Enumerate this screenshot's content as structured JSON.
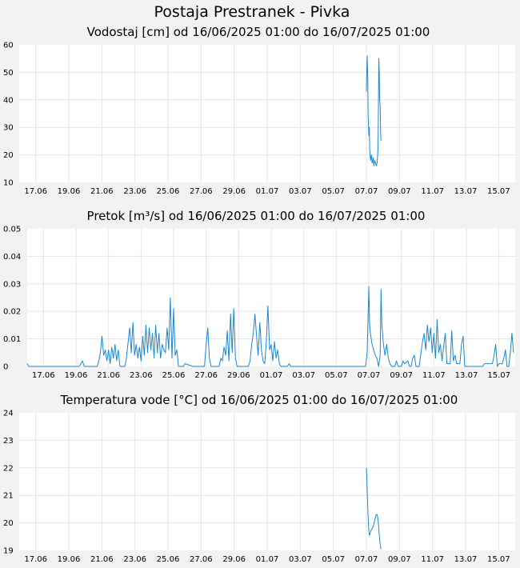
{
  "page": {
    "title": "Postaja Prestranek - Pivka"
  },
  "x_tick_labels": [
    "17.06",
    "19.06",
    "21.06",
    "23.06",
    "25.06",
    "27.06",
    "29.06",
    "01.07",
    "03.07",
    "05.07",
    "07.07",
    "09.07",
    "11.07",
    "13.07",
    "15.07"
  ],
  "colors": {
    "series": "#1b88d0",
    "background": "#f2f2f2",
    "plot": "#ffffff",
    "grid": "#e6e6e6"
  },
  "chart_data": [
    {
      "type": "line",
      "title": "Vodostaj [cm] od 16/06/2025 01:00 do 16/07/2025 01:00",
      "x_unit": "days since 16/06/2025 01:00",
      "xlim": [
        0,
        30
      ],
      "ylim": [
        10,
        60
      ],
      "y_ticks": [
        "10",
        "20",
        "30",
        "40",
        "50",
        "60"
      ],
      "grid": true,
      "series": [
        {
          "points": [
            [
              21.0,
              43
            ],
            [
              21.02,
              49
            ],
            [
              21.05,
              56
            ],
            [
              21.08,
              48
            ],
            [
              21.1,
              35
            ],
            [
              21.13,
              30
            ],
            [
              21.15,
              27
            ],
            [
              21.18,
              30
            ],
            [
              21.2,
              22
            ],
            [
              21.25,
              18
            ],
            [
              21.3,
              20
            ],
            [
              21.35,
              17
            ],
            [
              21.4,
              19
            ],
            [
              21.45,
              16
            ],
            [
              21.5,
              18
            ],
            [
              21.55,
              17
            ],
            [
              21.6,
              16
            ],
            [
              21.65,
              17
            ],
            [
              21.7,
              22
            ],
            [
              21.73,
              40
            ],
            [
              21.75,
              55
            ],
            [
              21.78,
              50
            ],
            [
              21.8,
              41
            ],
            [
              21.83,
              38
            ],
            [
              21.86,
              28
            ],
            [
              21.88,
              25
            ]
          ]
        }
      ]
    },
    {
      "type": "line",
      "title": "Pretok [m³/s] od 16/06/2025 01:00 do 16/07/2025 01:00",
      "x_unit": "days since 16/06/2025 01:00",
      "xlim": [
        0,
        30
      ],
      "ylim": [
        0,
        0.05
      ],
      "y_ticks": [
        "0",
        "0.01",
        "0.02",
        "0.03",
        "0.04",
        "0.05"
      ],
      "grid": true,
      "series": [
        {
          "points": [
            [
              0.0,
              0.001
            ],
            [
              0.1,
              0.0
            ],
            [
              3.2,
              0.0
            ],
            [
              3.3,
              0.001
            ],
            [
              3.4,
              0.002
            ],
            [
              3.5,
              0.0
            ],
            [
              4.3,
              0.0
            ],
            [
              4.4,
              0.002
            ],
            [
              4.5,
              0.005
            ],
            [
              4.6,
              0.011
            ],
            [
              4.7,
              0.004
            ],
            [
              4.8,
              0.006
            ],
            [
              4.9,
              0.002
            ],
            [
              5.0,
              0.006
            ],
            [
              5.1,
              0.001
            ],
            [
              5.2,
              0.007
            ],
            [
              5.3,
              0.003
            ],
            [
              5.4,
              0.008
            ],
            [
              5.5,
              0.002
            ],
            [
              5.6,
              0.006
            ],
            [
              5.7,
              0.0
            ],
            [
              6.0,
              0.0
            ],
            [
              6.1,
              0.003
            ],
            [
              6.3,
              0.014
            ],
            [
              6.4,
              0.005
            ],
            [
              6.5,
              0.016
            ],
            [
              6.6,
              0.004
            ],
            [
              6.7,
              0.008
            ],
            [
              6.8,
              0.003
            ],
            [
              6.9,
              0.007
            ],
            [
              7.0,
              0.002
            ],
            [
              7.1,
              0.011
            ],
            [
              7.2,
              0.004
            ],
            [
              7.3,
              0.015
            ],
            [
              7.4,
              0.005
            ],
            [
              7.5,
              0.014
            ],
            [
              7.6,
              0.006
            ],
            [
              7.7,
              0.012
            ],
            [
              7.8,
              0.003
            ],
            [
              7.9,
              0.015
            ],
            [
              8.0,
              0.005
            ],
            [
              8.1,
              0.012
            ],
            [
              8.2,
              0.003
            ],
            [
              8.3,
              0.008
            ],
            [
              8.4,
              0.006
            ],
            [
              8.5,
              0.005
            ],
            [
              8.6,
              0.014
            ],
            [
              8.7,
              0.006
            ],
            [
              8.8,
              0.025
            ],
            [
              8.9,
              0.003
            ],
            [
              9.0,
              0.021
            ],
            [
              9.1,
              0.004
            ],
            [
              9.2,
              0.006
            ],
            [
              9.3,
              0.0
            ],
            [
              9.6,
              0.0
            ],
            [
              9.7,
              0.001
            ],
            [
              10.2,
              0.0
            ],
            [
              10.7,
              0.0
            ],
            [
              10.9,
              0.0
            ],
            [
              11.0,
              0.008
            ],
            [
              11.1,
              0.014
            ],
            [
              11.2,
              0.003
            ],
            [
              11.3,
              0.0
            ],
            [
              11.8,
              0.0
            ],
            [
              11.9,
              0.003
            ],
            [
              12.0,
              0.002
            ],
            [
              12.1,
              0.007
            ],
            [
              12.2,
              0.004
            ],
            [
              12.3,
              0.013
            ],
            [
              12.4,
              0.002
            ],
            [
              12.5,
              0.019
            ],
            [
              12.6,
              0.005
            ],
            [
              12.7,
              0.021
            ],
            [
              12.8,
              0.003
            ],
            [
              12.9,
              0.0
            ],
            [
              13.6,
              0.0
            ],
            [
              13.7,
              0.002
            ],
            [
              13.8,
              0.008
            ],
            [
              13.9,
              0.012
            ],
            [
              14.0,
              0.019
            ],
            [
              14.1,
              0.011
            ],
            [
              14.2,
              0.004
            ],
            [
              14.3,
              0.016
            ],
            [
              14.4,
              0.006
            ],
            [
              14.5,
              0.002
            ],
            [
              14.6,
              0.001
            ],
            [
              14.7,
              0.009
            ],
            [
              14.8,
              0.022
            ],
            [
              14.9,
              0.006
            ],
            [
              15.0,
              0.008
            ],
            [
              15.1,
              0.002
            ],
            [
              15.2,
              0.009
            ],
            [
              15.3,
              0.003
            ],
            [
              15.4,
              0.006
            ],
            [
              15.5,
              0.001
            ],
            [
              15.6,
              0.0
            ],
            [
              16.0,
              0.0
            ],
            [
              16.1,
              0.001
            ],
            [
              16.2,
              0.0
            ],
            [
              20.8,
              0.0
            ],
            [
              20.9,
              0.005
            ],
            [
              21.0,
              0.029
            ],
            [
              21.05,
              0.015
            ],
            [
              21.1,
              0.012
            ],
            [
              21.2,
              0.008
            ],
            [
              21.3,
              0.006
            ],
            [
              21.4,
              0.004
            ],
            [
              21.5,
              0.003
            ],
            [
              21.6,
              0.0
            ],
            [
              21.7,
              0.004
            ],
            [
              21.75,
              0.028
            ],
            [
              21.8,
              0.015
            ],
            [
              21.9,
              0.008
            ],
            [
              22.0,
              0.004
            ],
            [
              22.1,
              0.008
            ],
            [
              22.2,
              0.003
            ],
            [
              22.3,
              0.001
            ],
            [
              22.4,
              0.0
            ],
            [
              22.6,
              0.0
            ],
            [
              22.7,
              0.002
            ],
            [
              22.8,
              0.0
            ],
            [
              23.0,
              0.0
            ],
            [
              23.1,
              0.002
            ],
            [
              23.2,
              0.001
            ],
            [
              23.4,
              0.002
            ],
            [
              23.5,
              0.0
            ],
            [
              23.6,
              0.0
            ],
            [
              23.7,
              0.003
            ],
            [
              23.8,
              0.004
            ],
            [
              23.9,
              0.0
            ],
            [
              24.1,
              0.0
            ],
            [
              24.3,
              0.009
            ],
            [
              24.4,
              0.012
            ],
            [
              24.5,
              0.006
            ],
            [
              24.6,
              0.015
            ],
            [
              24.7,
              0.009
            ],
            [
              24.8,
              0.014
            ],
            [
              24.9,
              0.005
            ],
            [
              25.0,
              0.012
            ],
            [
              25.1,
              0.003
            ],
            [
              25.2,
              0.017
            ],
            [
              25.3,
              0.005
            ],
            [
              25.4,
              0.008
            ],
            [
              25.5,
              0.002
            ],
            [
              25.6,
              0.007
            ],
            [
              25.7,
              0.012
            ],
            [
              25.8,
              0.001
            ],
            [
              26.0,
              0.001
            ],
            [
              26.1,
              0.013
            ],
            [
              26.2,
              0.002
            ],
            [
              26.3,
              0.004
            ],
            [
              26.4,
              0.001
            ],
            [
              26.6,
              0.001
            ],
            [
              26.7,
              0.008
            ],
            [
              26.8,
              0.011
            ],
            [
              26.9,
              0.0
            ],
            [
              28.0,
              0.0
            ],
            [
              28.1,
              0.001
            ],
            [
              28.6,
              0.001
            ],
            [
              28.7,
              0.004
            ],
            [
              28.8,
              0.008
            ],
            [
              28.9,
              0.0
            ],
            [
              29.0,
              0.001
            ],
            [
              29.2,
              0.001
            ],
            [
              29.3,
              0.003
            ],
            [
              29.4,
              0.006
            ],
            [
              29.5,
              0.0
            ],
            [
              29.6,
              0.0
            ],
            [
              29.7,
              0.005
            ],
            [
              29.8,
              0.012
            ],
            [
              29.9,
              0.005
            ]
          ]
        }
      ]
    },
    {
      "type": "line",
      "title": "Temperatura vode [°C] od 16/06/2025 01:00 do 16/07/2025 01:00",
      "x_unit": "days since 16/06/2025 01:00",
      "xlim": [
        0,
        30
      ],
      "ylim": [
        19,
        24
      ],
      "y_ticks": [
        "19",
        "20",
        "21",
        "22",
        "23",
        "24"
      ],
      "grid": true,
      "series": [
        {
          "points": [
            [
              21.0,
              22.0
            ],
            [
              21.03,
              21.6
            ],
            [
              21.06,
              21.0
            ],
            [
              21.09,
              20.4
            ],
            [
              21.12,
              20.0
            ],
            [
              21.15,
              19.7
            ],
            [
              21.18,
              19.55
            ],
            [
              21.22,
              19.6
            ],
            [
              21.26,
              19.7
            ],
            [
              21.3,
              19.75
            ],
            [
              21.35,
              19.8
            ],
            [
              21.4,
              19.85
            ],
            [
              21.45,
              19.95
            ],
            [
              21.5,
              20.1
            ],
            [
              21.55,
              20.2
            ],
            [
              21.6,
              20.3
            ],
            [
              21.65,
              20.3
            ],
            [
              21.68,
              20.2
            ],
            [
              21.72,
              20.0
            ],
            [
              21.76,
              19.7
            ],
            [
              21.8,
              19.4
            ],
            [
              21.84,
              19.2
            ],
            [
              21.88,
              19.05
            ]
          ]
        }
      ]
    }
  ]
}
